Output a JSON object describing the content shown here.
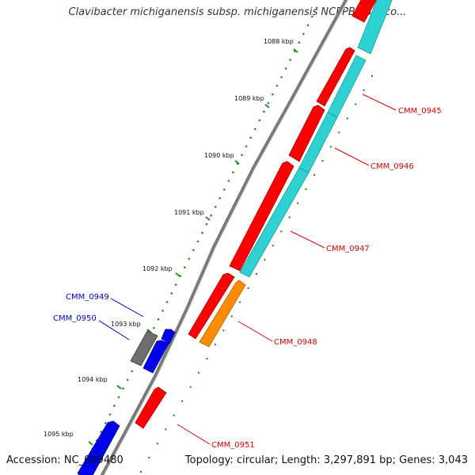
{
  "title": "Clavibacter michiganensis subsp. michiganensis NCPPB 382, co...",
  "footer": {
    "accession": "Accession: NC_009480",
    "summary": "Topology: circular; Length: 3,297,891 bp; Genes: 3,043"
  },
  "colors": {
    "backbone": "#8c8c8c",
    "ruler_dots": "#2a8a2a",
    "forward_strand_red": "#ff0000",
    "reverse_strand_cyan": "#2fd2d2",
    "pseudo_orange": "#ff8c00",
    "blue_gene": "#0000ee",
    "gray_gene": "#6e6e6e",
    "label_red": "#dd0000",
    "label_blue": "#0000cc"
  },
  "ruler": {
    "unit": "kbp",
    "ticks": [
      {
        "label": "1088 kbp"
      },
      {
        "label": "1089 kbp"
      },
      {
        "label": "1090 kbp"
      },
      {
        "label": "1091 kbp"
      },
      {
        "label": "1092 kbp"
      },
      {
        "label": "1093 kbp"
      },
      {
        "label": "1094 kbp"
      },
      {
        "label": "1095 kbp"
      }
    ]
  },
  "gene_labels": [
    {
      "id": "CMM_0945",
      "text": "CMM_0945",
      "color": "red"
    },
    {
      "id": "CMM_0946",
      "text": "CMM_0946",
      "color": "red"
    },
    {
      "id": "CMM_0947",
      "text": "CMM_0947",
      "color": "red"
    },
    {
      "id": "CMM_0948",
      "text": "CMM_0948",
      "color": "red"
    },
    {
      "id": "CMM_0949",
      "text": "CMM_0949",
      "color": "blue"
    },
    {
      "id": "CMM_0950",
      "text": "CMM_0950",
      "color": "blue"
    },
    {
      "id": "CMM_0951",
      "text": "CMM_0951",
      "color": "red"
    }
  ]
}
